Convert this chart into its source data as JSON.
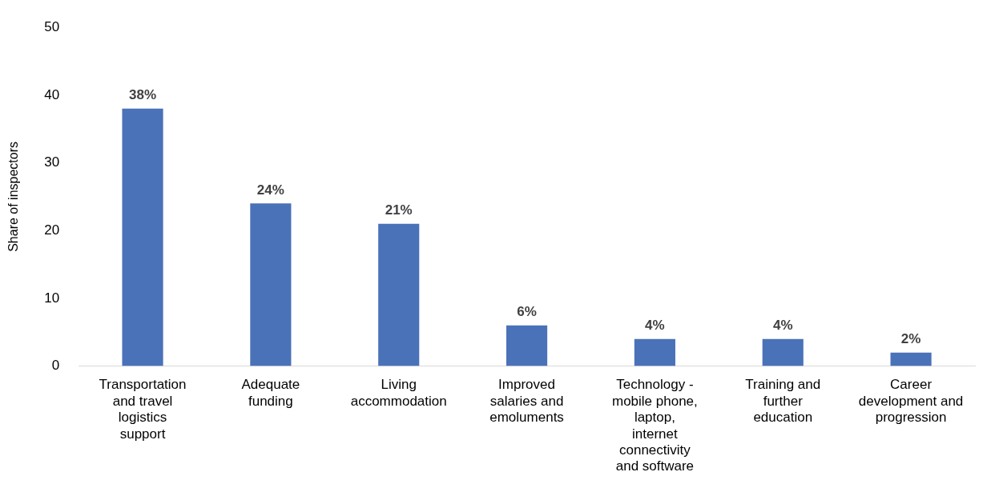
{
  "chart_data": {
    "type": "bar",
    "ylabel": "Share of inspectors",
    "categories": [
      "Transportation and travel logistics support",
      "Adequate funding",
      "Living accommodation",
      "Improved salaries and emoluments",
      "Technology - mobile phone, laptop, internet connectivity and software",
      "Training and further education",
      "Career development and progression"
    ],
    "values": [
      38,
      24,
      21,
      6,
      4,
      4,
      2
    ],
    "value_labels": [
      "38%",
      "24%",
      "21%",
      "6%",
      "4%",
      "4%",
      "2%"
    ],
    "color": "#4a72b8",
    "ylim": [
      0,
      50
    ],
    "yticks": [
      0,
      10,
      20,
      30,
      40,
      50
    ],
    "grid": false,
    "legend": false
  }
}
